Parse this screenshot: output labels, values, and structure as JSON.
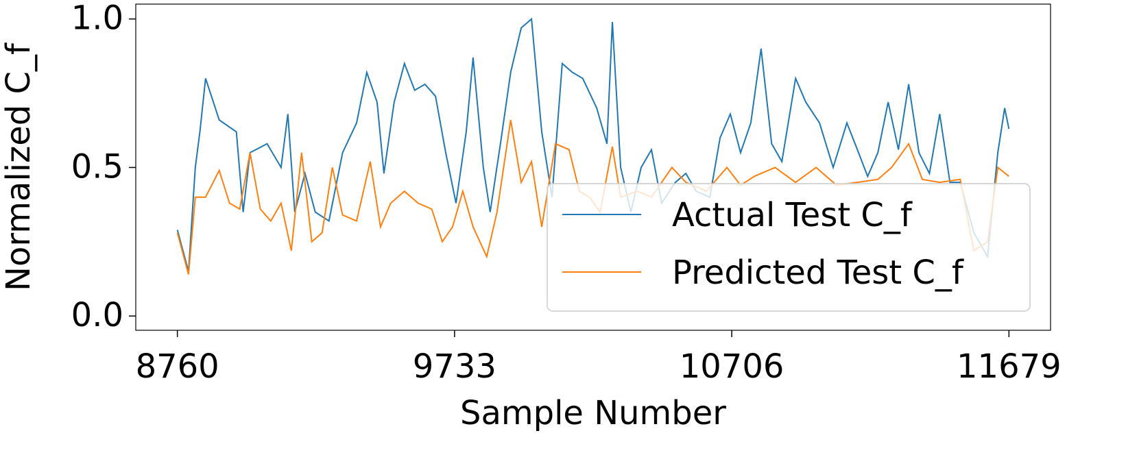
{
  "chart_data": {
    "type": "line",
    "xlabel": "Sample Number",
    "ylabel": "Normalized C_f",
    "xlim": [
      8614,
      11825
    ],
    "ylim": [
      -0.048,
      1.05
    ],
    "xticks": [
      8760,
      9733,
      10706,
      11679
    ],
    "yticks": [
      {
        "value": 0,
        "label": "0.0"
      },
      0.5,
      {
        "value": 1,
        "label": "1.0"
      }
    ],
    "legend": "lower right",
    "series": [
      {
        "name": "Actual Test C_f",
        "color": "#1f77b4",
        "x": [
          8760,
          8799,
          8823,
          8839,
          8859,
          8907,
          8967,
          8991,
          9015,
          9075,
          9124,
          9148,
          9172,
          9208,
          9244,
          9292,
          9340,
          9389,
          9425,
          9461,
          9485,
          9521,
          9557,
          9593,
          9629,
          9666,
          9702,
          9738,
          9774,
          9798,
          9834,
          9858,
          9894,
          9930,
          9967,
          10003,
          10039,
          10075,
          10111,
          10147,
          10183,
          10232,
          10268,
          10287,
          10316,
          10352,
          10388,
          10424,
          10460,
          10508,
          10545,
          10581,
          10629,
          10665,
          10701,
          10737,
          10773,
          10809,
          10846,
          10882,
          10930,
          10966,
          11014,
          11062,
          11110,
          11147,
          11183,
          11219,
          11255,
          11291,
          11327,
          11363,
          11400,
          11436,
          11472,
          11508,
          11556,
          11604,
          11640,
          11664,
          11679
        ],
        "values": [
          0.29,
          0.15,
          0.5,
          0.62,
          0.8,
          0.66,
          0.62,
          0.35,
          0.55,
          0.58,
          0.5,
          0.68,
          0.35,
          0.48,
          0.35,
          0.32,
          0.55,
          0.65,
          0.82,
          0.72,
          0.48,
          0.72,
          0.85,
          0.76,
          0.78,
          0.74,
          0.55,
          0.38,
          0.62,
          0.87,
          0.5,
          0.35,
          0.58,
          0.82,
          0.97,
          1.0,
          0.62,
          0.4,
          0.85,
          0.82,
          0.8,
          0.7,
          0.58,
          0.99,
          0.5,
          0.35,
          0.5,
          0.56,
          0.38,
          0.45,
          0.48,
          0.42,
          0.4,
          0.6,
          0.68,
          0.55,
          0.65,
          0.9,
          0.58,
          0.52,
          0.8,
          0.72,
          0.65,
          0.5,
          0.65,
          0.56,
          0.47,
          0.55,
          0.72,
          0.56,
          0.78,
          0.55,
          0.48,
          0.68,
          0.45,
          0.45,
          0.28,
          0.2,
          0.55,
          0.7,
          0.63
        ]
      },
      {
        "name": "Predicted Test C_f",
        "color": "#ff7f0e",
        "x": [
          8760,
          8799,
          8823,
          8859,
          8907,
          8943,
          8979,
          9015,
          9051,
          9088,
          9124,
          9160,
          9196,
          9232,
          9268,
          9304,
          9340,
          9389,
          9437,
          9473,
          9509,
          9557,
          9605,
          9653,
          9690,
          9726,
          9762,
          9798,
          9846,
          9882,
          9930,
          9967,
          10003,
          10039,
          10087,
          10135,
          10171,
          10207,
          10244,
          10287,
          10316,
          10376,
          10424,
          10496,
          10545,
          10617,
          10689,
          10737,
          10785,
          10858,
          10930,
          11002,
          11074,
          11147,
          11219,
          11267,
          11327,
          11375,
          11436,
          11508,
          11556,
          11604,
          11640,
          11679
        ],
        "values": [
          0.28,
          0.14,
          0.4,
          0.4,
          0.49,
          0.38,
          0.36,
          0.55,
          0.36,
          0.32,
          0.38,
          0.22,
          0.55,
          0.25,
          0.28,
          0.5,
          0.34,
          0.32,
          0.52,
          0.3,
          0.38,
          0.42,
          0.38,
          0.36,
          0.25,
          0.3,
          0.42,
          0.3,
          0.2,
          0.35,
          0.66,
          0.45,
          0.52,
          0.3,
          0.58,
          0.56,
          0.42,
          0.4,
          0.35,
          0.57,
          0.4,
          0.42,
          0.4,
          0.5,
          0.45,
          0.42,
          0.5,
          0.44,
          0.47,
          0.5,
          0.45,
          0.5,
          0.44,
          0.45,
          0.46,
          0.5,
          0.58,
          0.46,
          0.45,
          0.46,
          0.22,
          0.25,
          0.5,
          0.47
        ]
      }
    ]
  }
}
